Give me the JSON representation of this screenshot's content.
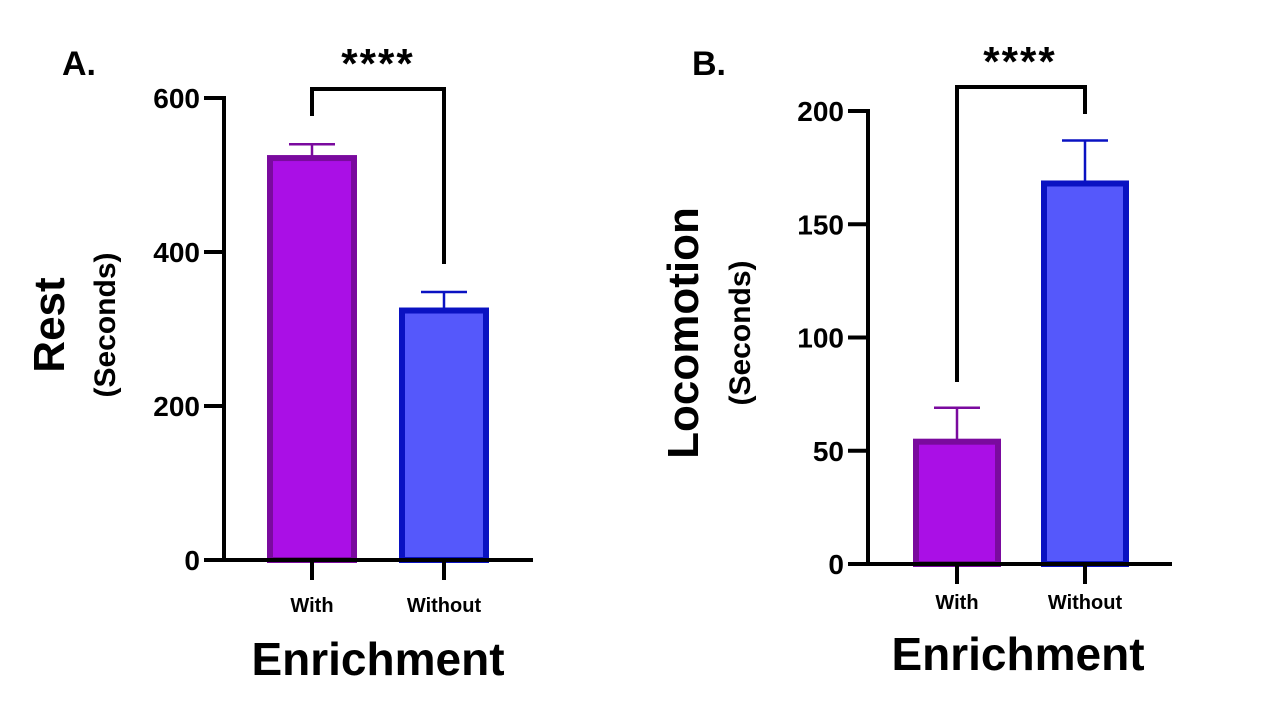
{
  "chart_data": [
    {
      "type": "bar",
      "panel": "A.",
      "significance": "****",
      "categories": [
        "With",
        "Without"
      ],
      "values": [
        522,
        324
      ],
      "error_upper": [
        540,
        348
      ],
      "colors": [
        "#AA0FE6",
        "#5558FB"
      ],
      "edge_colors": [
        "#7A0A9E",
        "#0A12C2"
      ],
      "xlabel": "Enrichment",
      "ylabel": "Rest",
      "ylabel_sub": "(Seconds)",
      "ylim": [
        0,
        600
      ],
      "yticks": [
        0,
        200,
        400,
        600
      ]
    },
    {
      "type": "bar",
      "panel": "B.",
      "significance": "****",
      "categories": [
        "With",
        "Without"
      ],
      "values": [
        54,
        168
      ],
      "error_upper": [
        69,
        187
      ],
      "colors": [
        "#AA0FE6",
        "#5558FB"
      ],
      "edge_colors": [
        "#7A0A9E",
        "#0A12C2"
      ],
      "xlabel": "Enrichment",
      "ylabel": "Locomotion",
      "ylabel_sub": "(Seconds)",
      "ylim": [
        0,
        200
      ],
      "yticks": [
        0,
        50,
        100,
        150,
        200
      ]
    }
  ]
}
